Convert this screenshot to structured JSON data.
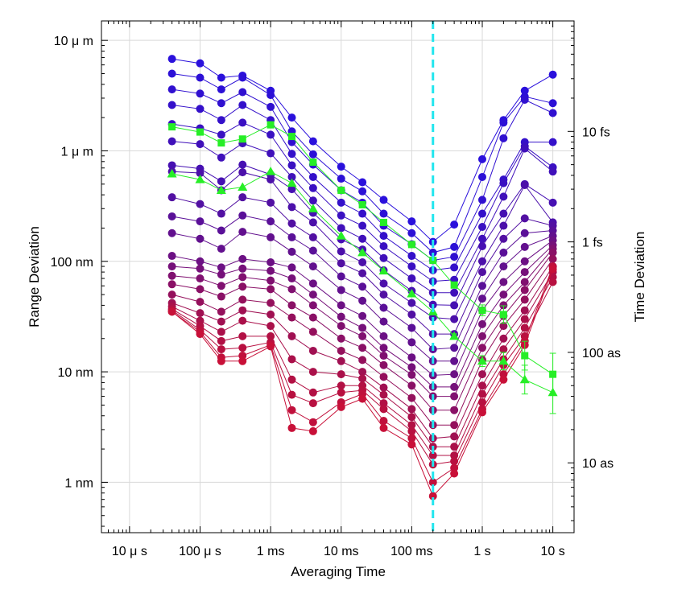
{
  "chart_data": {
    "type": "scatter",
    "xscale": "log",
    "yscale": "log",
    "xlim": [
      4e-06,
      20
    ],
    "ylim": [
      3.5e-10,
      1.5e-05
    ],
    "xlabel": "Averaging Time",
    "ylabel": "Range Deviation",
    "y2label": "Time Deviation",
    "xticks": [
      {
        "value": 1e-05,
        "label": "10 μ s"
      },
      {
        "value": 0.0001,
        "label": "100 μ s"
      },
      {
        "value": 0.001,
        "label": "1 ms"
      },
      {
        "value": 0.01,
        "label": "10 ms"
      },
      {
        "value": 0.1,
        "label": "100 ms"
      },
      {
        "value": 1,
        "label": "1 s"
      },
      {
        "value": 10,
        "label": "10 s"
      }
    ],
    "yticks": [
      {
        "value": 1e-09,
        "label": "1 nm"
      },
      {
        "value": 1e-08,
        "label": "10 nm"
      },
      {
        "value": 1e-07,
        "label": "100 nm"
      },
      {
        "value": 1e-06,
        "label": "1 μ m"
      },
      {
        "value": 1e-05,
        "label": "10 μ m"
      }
    ],
    "y2ticks": [
      {
        "value": 1e-17,
        "label": "10 as"
      },
      {
        "value": 1e-16,
        "label": "100 as"
      },
      {
        "value": 1e-15,
        "label": "1 fs"
      },
      {
        "value": 1e-14,
        "label": "10 fs"
      }
    ],
    "y2_conversion_m_per_s": 150000000,
    "grid": true,
    "vline": {
      "x": 0.2,
      "color": "#22e6ee",
      "style": "dashed"
    },
    "x": [
      4e-05,
      0.0001,
      0.0002,
      0.0004,
      0.001,
      0.002,
      0.004,
      0.01,
      0.02,
      0.04,
      0.1,
      0.2,
      0.4,
      1,
      2,
      4,
      10
    ],
    "series": [
      {
        "color": "#2a10dc",
        "values": [
          6.8e-06,
          6.2e-06,
          4.6e-06,
          4.8e-06,
          3.5e-06,
          2e-06,
          1.22e-06,
          7.2e-07,
          5.2e-07,
          3.6e-07,
          2.3e-07,
          1.5e-07,
          2.15e-07,
          8.4e-07,
          1.9e-06,
          3.5e-06,
          4.9e-06
        ]
      },
      {
        "color": "#2c10d6",
        "values": [
          5e-06,
          4.6e-06,
          3.6e-06,
          4.6e-06,
          3.2e-06,
          1.5e-06,
          9.3e-07,
          5.6e-07,
          4.3e-07,
          2.7e-07,
          1.8e-07,
          1.2e-07,
          1.35e-07,
          5.8e-07,
          1.8e-06,
          3.1e-06,
          2.7e-06
        ]
      },
      {
        "color": "#3010d0",
        "values": [
          3.6e-06,
          3.3e-06,
          2.7e-06,
          3.4e-06,
          2.5e-06,
          1.2e-06,
          7.5e-07,
          4.4e-07,
          3.4e-07,
          2.1e-07,
          1.43e-07,
          1.02e-07,
          1.1e-07,
          3.6e-07,
          1.3e-06,
          2.9e-06,
          2.2e-06
        ]
      },
      {
        "color": "#3410ca",
        "values": [
          2.6e-06,
          2.4e-06,
          1.9e-06,
          2.6e-06,
          1.9e-06,
          9.4e-07,
          5.8e-07,
          3.4e-07,
          2.7e-07,
          1.7e-07,
          1.12e-07,
          8.3e-08,
          8.8e-08,
          2.7e-07,
          5.5e-07,
          1.2e-06,
          1.2e-06
        ]
      },
      {
        "color": "#3a10c2",
        "values": [
          1.75e-06,
          1.6e-06,
          1.4e-06,
          1.8e-06,
          1.4e-06,
          7.4e-07,
          4.6e-07,
          2.6e-07,
          2.1e-07,
          1.37e-07,
          9e-08,
          6.6e-08,
          6.8e-08,
          2.05e-07,
          5.1e-07,
          1.1e-06,
          7.1e-07
        ]
      },
      {
        "color": "#4010ba",
        "values": [
          1.22e-06,
          1.15e-06,
          8.7e-07,
          1.17e-06,
          9.5e-07,
          5.8e-07,
          3.55e-07,
          2e-07,
          1.6e-07,
          1.07e-07,
          7e-08,
          5.2e-08,
          5.2e-08,
          1.6e-07,
          3.85e-07,
          1.05e-06,
          6.5e-07
        ]
      },
      {
        "color": "#4610b2",
        "values": [
          7.4e-07,
          6.9e-07,
          5.3e-07,
          7.5e-07,
          6.1e-07,
          4.5e-07,
          2.75e-07,
          1.58e-07,
          1.28e-07,
          8.3e-08,
          5.4e-08,
          4.05e-08,
          4e-08,
          1.37e-07,
          2.7e-07,
          5e-07,
          3.4e-07
        ]
      },
      {
        "color": "#4c10aa",
        "values": [
          6.5e-07,
          6.3e-07,
          4.4e-07,
          6.4e-07,
          5.5e-07,
          3.1e-07,
          2.25e-07,
          1.23e-07,
          9.8e-08,
          6.3e-08,
          4.2e-08,
          3.1e-08,
          3e-08,
          1e-07,
          2.1e-07,
          4.9e-07,
          2.25e-07
        ]
      },
      {
        "color": "#5210a2",
        "values": [
          3.8e-07,
          3.3e-07,
          2.7e-07,
          3.8e-07,
          3.4e-07,
          2.2e-07,
          1.65e-07,
          9.6e-08,
          7.8e-08,
          5e-08,
          3.3e-08,
          2.2e-08,
          2.2e-08,
          8e-08,
          1.6e-07,
          2.45e-07,
          2.1e-07
        ]
      },
      {
        "color": "#5a1098",
        "values": [
          2.55e-07,
          2.3e-07,
          1.9e-07,
          2.6e-07,
          2.3e-07,
          1.65e-07,
          1.25e-07,
          7.3e-08,
          5.9e-08,
          3.8e-08,
          2.5e-08,
          1.6e-08,
          1.65e-08,
          6e-08,
          1.2e-07,
          1.8e-07,
          1.9e-07
        ]
      },
      {
        "color": "#62108e",
        "values": [
          1.8e-07,
          1.6e-07,
          1.3e-07,
          1.85e-07,
          1.65e-07,
          1.22e-07,
          9e-08,
          5.5e-08,
          4.4e-08,
          2.85e-08,
          1.85e-08,
          1.25e-08,
          1.25e-08,
          4.6e-08,
          9e-08,
          1.35e-07,
          1.7e-07
        ]
      },
      {
        "color": "#6c1084",
        "values": [
          1.12e-07,
          1e-07,
          8.8e-08,
          1.05e-07,
          9.8e-08,
          8.8e-08,
          6.3e-08,
          4e-08,
          3.2e-08,
          2.1e-08,
          1.35e-08,
          9.3e-09,
          9.5e-09,
          3.6e-08,
          6.5e-08,
          1e-07,
          1.55e-07
        ]
      },
      {
        "color": "#76107a",
        "values": [
          9e-08,
          8.6e-08,
          7.6e-08,
          8.6e-08,
          8.2e-08,
          7e-08,
          5e-08,
          3.15e-08,
          2.5e-08,
          1.65e-08,
          1.1e-08,
          7.3e-09,
          7.3e-09,
          2.7e-08,
          5e-08,
          8e-08,
          1.4e-07
        ]
      },
      {
        "color": "#801070",
        "values": [
          7.4e-08,
          7e-08,
          6e-08,
          7.2e-08,
          6.7e-08,
          5.6e-08,
          4e-08,
          2.6e-08,
          2.1e-08,
          1.4e-08,
          9.4e-09,
          6e-09,
          6e-09,
          2.1e-08,
          4e-08,
          6.5e-08,
          1.3e-07
        ]
      },
      {
        "color": "#8a1066",
        "values": [
          6.2e-08,
          5.6e-08,
          4.8e-08,
          5.9e-08,
          5.6e-08,
          4e-08,
          3.1e-08,
          2e-08,
          1.65e-08,
          1.15e-08,
          7.5e-09,
          4.5e-09,
          4.5e-09,
          1.65e-08,
          3.2e-08,
          5.5e-08,
          1.2e-07
        ]
      },
      {
        "color": "#94105c",
        "values": [
          5e-08,
          4.3e-08,
          3.5e-08,
          4.5e-08,
          4.2e-08,
          3.1e-08,
          2.3e-08,
          1.55e-08,
          1.28e-08,
          9e-09,
          5.8e-09,
          3.3e-09,
          3.3e-09,
          1.28e-08,
          2.6e-08,
          4.5e-08,
          1.05e-07
        ]
      },
      {
        "color": "#a01052",
        "values": [
          4.2e-08,
          3.4e-08,
          2.85e-08,
          3.6e-08,
          3.3e-08,
          2.1e-08,
          1.55e-08,
          1.25e-08,
          1e-08,
          7.2e-09,
          4.6e-09,
          2.5e-09,
          2.6e-09,
          9.5e-09,
          2e-08,
          3.6e-08,
          9e-08
        ]
      },
      {
        "color": "#aa104a",
        "values": [
          3.9e-08,
          2.9e-08,
          2.3e-08,
          2.9e-08,
          2.6e-08,
          1.3e-08,
          1e-08,
          9.5e-09,
          8.7e-09,
          6.2e-09,
          3.9e-09,
          2.1e-09,
          2.1e-09,
          7.5e-09,
          1.6e-08,
          3e-08,
          8e-08
        ]
      },
      {
        "color": "#b21044",
        "values": [
          3.7e-08,
          2.6e-08,
          1.9e-08,
          2.1e-08,
          2.1e-08,
          8.5e-09,
          6.5e-09,
          7.5e-09,
          7.5e-09,
          5.2e-09,
          3.3e-09,
          1.75e-09,
          1.75e-09,
          6.3e-09,
          1.3e-08,
          2.5e-08,
          7.2e-08
        ]
      },
      {
        "color": "#b81040",
        "values": [
          3.6e-08,
          2.4e-08,
          1.6e-08,
          1.65e-08,
          1.85e-08,
          6.2e-09,
          5.2e-09,
          6.5e-09,
          6.8e-09,
          4.6e-09,
          2.9e-09,
          1.45e-09,
          1.55e-09,
          5.3e-09,
          1.15e-08,
          2.1e-08,
          6.5e-08
        ]
      },
      {
        "color": "#c0103c",
        "values": [
          3.5e-08,
          2.3e-08,
          1.35e-08,
          1.4e-08,
          1.75e-08,
          4.5e-09,
          3.5e-09,
          5.3e-09,
          6.3e-09,
          3.6e-09,
          2.5e-09,
          1e-09,
          1.35e-09,
          4.6e-09,
          9.5e-09,
          1.9e-08,
          9e-08
        ]
      },
      {
        "color": "#c81038",
        "values": [
          3.5e-08,
          2.2e-08,
          1.25e-08,
          1.25e-08,
          1.7e-08,
          3.1e-09,
          2.9e-09,
          4.8e-09,
          5.7e-09,
          3.1e-09,
          2.2e-09,
          7.5e-10,
          1.2e-09,
          4.3e-09,
          8.5e-09,
          1.75e-08,
          8.5e-08
        ]
      },
      {
        "color": "#26ee26",
        "marker": "square",
        "values": [
          1.65e-06,
          1.48e-06,
          1.18e-06,
          1.28e-06,
          1.72e-06,
          1.35e-06,
          7.9e-07,
          4.4e-07,
          3.25e-07,
          2.25e-07,
          1.42e-07,
          1.02e-07,
          6.1e-08,
          3.6e-08,
          3.3e-08,
          1.4e-08,
          9.5e-09
        ],
        "errors": [
          0,
          0,
          0,
          0,
          0,
          0,
          0,
          0,
          0,
          0,
          0,
          0,
          0.05,
          0.12,
          0.2,
          0.35,
          0.55
        ]
      },
      {
        "color": "#26ee26",
        "marker": "triangle",
        "values": [
          6.2e-07,
          5.5e-07,
          4.4e-07,
          4.7e-07,
          6.5e-07,
          5.1e-07,
          3e-07,
          1.7e-07,
          1.2e-07,
          8.2e-08,
          5.1e-08,
          3.5e-08,
          2.1e-08,
          1.25e-08,
          1.25e-08,
          8.5e-09,
          6.5e-09
        ],
        "errors": [
          0,
          0,
          0,
          0,
          0,
          0,
          0,
          0,
          0,
          0,
          0,
          0,
          0.05,
          0.12,
          0.2,
          0.35,
          0.55
        ]
      }
    ]
  }
}
